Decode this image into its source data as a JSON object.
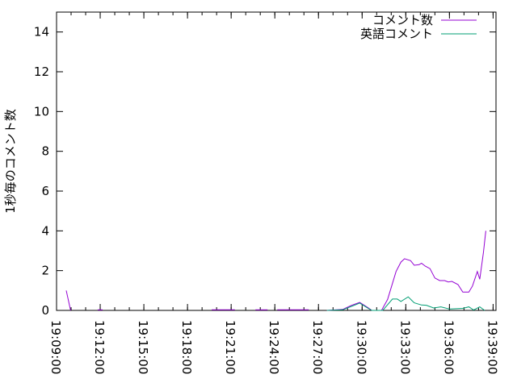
{
  "chart_data": {
    "type": "line",
    "title": "",
    "xlabel": "",
    "ylabel": "1秒毎のコメント数",
    "xlim": [
      "19:09:00",
      "19:39:12"
    ],
    "ylim": [
      0,
      15
    ],
    "yticks": [
      0,
      2,
      4,
      6,
      8,
      10,
      12,
      14
    ],
    "xticks": [
      "19:09:00",
      "19:12:00",
      "19:15:00",
      "19:18:00",
      "19:21:00",
      "19:24:00",
      "19:27:00",
      "19:30:00",
      "19:33:00",
      "19:36:00",
      "19:39:00"
    ],
    "grid": false,
    "legend": "top-right",
    "series": [
      {
        "name": "コメント数",
        "color": "#9400d3",
        "points": [
          [
            "19:09:40",
            1.0
          ],
          [
            "19:09:58",
            0
          ],
          null,
          [
            "19:11:50",
            0.03
          ],
          [
            "19:12:10",
            0.03
          ],
          null,
          [
            "19:19:40",
            0.03
          ],
          [
            "19:21:15",
            0.03
          ],
          null,
          [
            "19:22:40",
            0.03
          ],
          [
            "19:23:30",
            0.03
          ],
          null,
          [
            "19:24:10",
            0.03
          ],
          [
            "19:26:20",
            0.03
          ],
          null,
          [
            "19:27:35",
            0
          ],
          [
            "19:28:40",
            0.05
          ],
          [
            "19:29:15",
            0.25
          ],
          [
            "19:29:50",
            0.4
          ],
          [
            "19:30:25",
            0.13
          ],
          [
            "19:30:40",
            0
          ],
          [
            "19:31:20",
            0
          ],
          [
            "19:31:45",
            0.55
          ],
          [
            "19:32:20",
            1.96
          ],
          [
            "19:32:40",
            2.43
          ],
          [
            "19:32:55",
            2.6
          ],
          [
            "19:33:20",
            2.5
          ],
          [
            "19:33:35",
            2.27
          ],
          [
            "19:33:55",
            2.3
          ],
          [
            "19:34:05",
            2.37
          ],
          [
            "19:34:20",
            2.23
          ],
          [
            "19:34:40",
            2.1
          ],
          [
            "19:35:00",
            1.63
          ],
          [
            "19:35:20",
            1.5
          ],
          [
            "19:35:40",
            1.5
          ],
          [
            "19:35:55",
            1.43
          ],
          [
            "19:36:10",
            1.46
          ],
          [
            "19:36:35",
            1.3
          ],
          [
            "19:36:55",
            0.92
          ],
          [
            "19:37:20",
            0.92
          ],
          [
            "19:37:35",
            1.23
          ],
          [
            "19:37:55",
            1.96
          ],
          [
            "19:38:05",
            1.57
          ],
          [
            "19:38:20",
            2.9
          ],
          [
            "19:38:30",
            4.0
          ]
        ]
      },
      {
        "name": "英語コメント",
        "color": "#009e73",
        "points": [
          [
            "19:27:35",
            0
          ],
          [
            "19:28:40",
            0.03
          ],
          [
            "19:29:15",
            0.2
          ],
          [
            "19:29:50",
            0.37
          ],
          [
            "19:30:25",
            0.1
          ],
          [
            "19:30:40",
            0
          ],
          [
            "19:31:25",
            0
          ],
          [
            "19:32:05",
            0.57
          ],
          [
            "19:32:25",
            0.57
          ],
          [
            "19:32:40",
            0.45
          ],
          [
            "19:33:10",
            0.68
          ],
          [
            "19:33:35",
            0.38
          ],
          [
            "19:34:05",
            0.27
          ],
          [
            "19:34:25",
            0.26
          ],
          [
            "19:34:55",
            0.12
          ],
          [
            "19:35:25",
            0.18
          ],
          [
            "19:36:00",
            0.07
          ],
          [
            "19:36:55",
            0.1
          ],
          [
            "19:37:20",
            0.18
          ],
          [
            "19:37:40",
            0.02
          ],
          [
            "19:38:05",
            0.18
          ],
          [
            "19:38:25",
            0
          ]
        ]
      }
    ]
  }
}
